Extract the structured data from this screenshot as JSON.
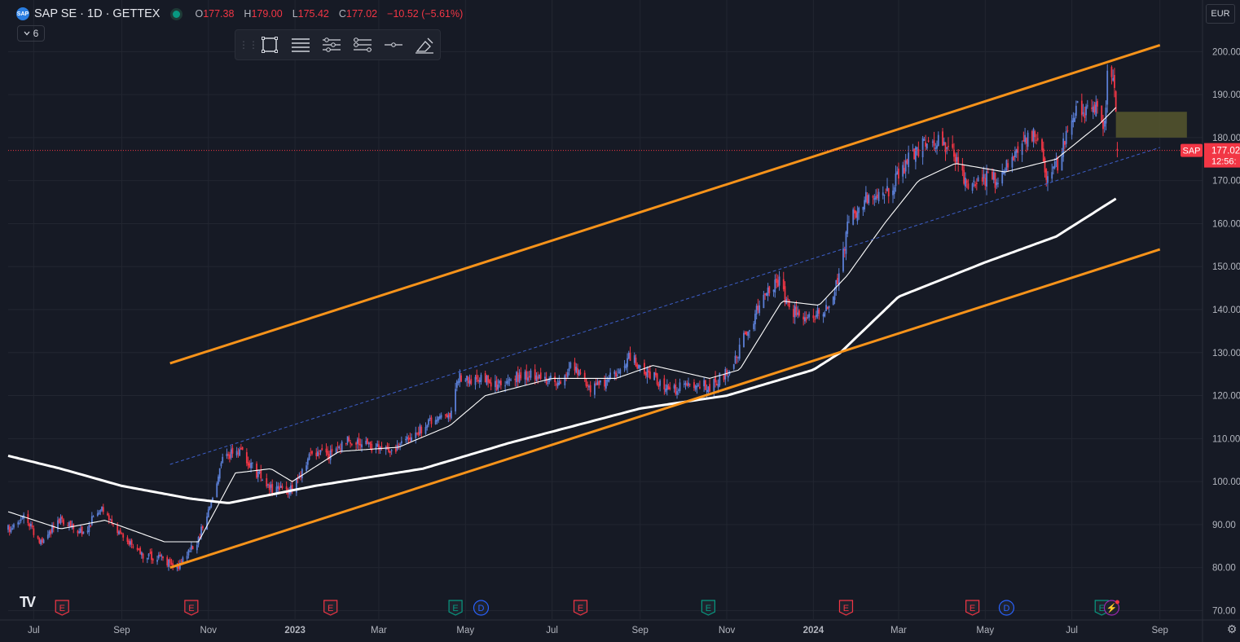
{
  "legend": {
    "logo": "SAP",
    "symbol": "SAP SE · 1D · GETTEX",
    "o_label": "O",
    "o": "177.38",
    "h_label": "H",
    "h": "179.00",
    "l_label": "L",
    "l": "175.42",
    "c_label": "C",
    "c": "177.02",
    "change": "−10.52 (−5.61%)"
  },
  "indicators_toggle": {
    "icon": "chevron-down-icon",
    "count": "6"
  },
  "drawing_toolbar": [
    "drag-handle-icon",
    "rectangle-icon",
    "align-lines-icon",
    "line-settings-icon",
    "lines-style-icon",
    "line-dot-icon",
    "eraser-icon"
  ],
  "currency": "EUR",
  "price_label": {
    "symbol": "SAP",
    "price": "177.02",
    "countdown": "12:56:",
    "color": "#f23645"
  },
  "events": [
    {
      "kind": "E",
      "date": "2022-07-21",
      "color": "#f23645"
    },
    {
      "kind": "E",
      "date": "2022-10-20",
      "color": "#f23645"
    },
    {
      "kind": "E",
      "date": "2023-01-26",
      "color": "#f23645"
    },
    {
      "kind": "E",
      "date": "2023-04-24",
      "color": "#089981"
    },
    {
      "kind": "D",
      "date": "2023-05-12",
      "color": "#2962ff"
    },
    {
      "kind": "E",
      "date": "2023-07-21",
      "color": "#f23645"
    },
    {
      "kind": "E",
      "date": "2023-10-19",
      "color": "#089981"
    },
    {
      "kind": "E",
      "date": "2024-01-24",
      "color": "#f23645"
    },
    {
      "kind": "E",
      "date": "2024-04-22",
      "color": "#f23645"
    },
    {
      "kind": "D",
      "date": "2024-05-16",
      "color": "#2962ff"
    },
    {
      "kind": "E",
      "date": "2024-07-22",
      "color": "#089981"
    },
    {
      "kind": "⚡",
      "date": "2024-07-29",
      "color": "#9c27b0"
    }
  ],
  "colors": {
    "up": "#5b7fd6",
    "down": "#f23645",
    "channel": "#f7931a",
    "ma": "#ffffff",
    "zone": "#5a5a2e",
    "background": "#161a25",
    "grid": "#222631"
  },
  "chart_data": {
    "type": "candlestick",
    "title": "SAP SE · 1D · GETTEX",
    "currency": "EUR",
    "xlim": [
      "2022-06-13",
      "2024-10-01"
    ],
    "ylim": [
      68,
      212
    ],
    "y_ticks": [
      70,
      80,
      90,
      100,
      110,
      120,
      130,
      140,
      150,
      160,
      170,
      180,
      190,
      200
    ],
    "y_tick_labels": [
      "70.00",
      "80.00",
      "90.00",
      "100.00",
      "110.00",
      "120.00",
      "130.00",
      "140.00",
      "150.00",
      "160.00",
      "170.00",
      "180.00",
      "190.00",
      "200.00"
    ],
    "x_ticks": [
      {
        "date": "2022-07-01",
        "label": "Jul"
      },
      {
        "date": "2022-09-01",
        "label": "Sep"
      },
      {
        "date": "2022-11-01",
        "label": "Nov"
      },
      {
        "date": "2023-01-01",
        "label": "2023"
      },
      {
        "date": "2023-03-01",
        "label": "Mar"
      },
      {
        "date": "2023-05-01",
        "label": "May"
      },
      {
        "date": "2023-07-01",
        "label": "Jul"
      },
      {
        "date": "2023-09-01",
        "label": "Sep"
      },
      {
        "date": "2023-11-01",
        "label": "Nov"
      },
      {
        "date": "2024-01-01",
        "label": "2024"
      },
      {
        "date": "2024-03-01",
        "label": "Mar"
      },
      {
        "date": "2024-05-01",
        "label": "May"
      },
      {
        "date": "2024-07-01",
        "label": "Jul"
      },
      {
        "date": "2024-09-01",
        "label": "Sep"
      }
    ],
    "price_anchors": [
      [
        "2022-06-13",
        89
      ],
      [
        "2022-06-24",
        92
      ],
      [
        "2022-07-05",
        86
      ],
      [
        "2022-07-20",
        91
      ],
      [
        "2022-08-05",
        88
      ],
      [
        "2022-08-17",
        94
      ],
      [
        "2022-08-31",
        88
      ],
      [
        "2022-09-15",
        83
      ],
      [
        "2022-09-29",
        82
      ],
      [
        "2022-10-10",
        80
      ],
      [
        "2022-10-24",
        86
      ],
      [
        "2022-11-04",
        96
      ],
      [
        "2022-11-11",
        106
      ],
      [
        "2022-11-24",
        107
      ],
      [
        "2022-12-05",
        102
      ],
      [
        "2022-12-16",
        98
      ],
      [
        "2022-12-30",
        98
      ],
      [
        "2023-01-13",
        107
      ],
      [
        "2023-01-27",
        106
      ],
      [
        "2023-02-08",
        110
      ],
      [
        "2023-02-24",
        108
      ],
      [
        "2023-03-10",
        107
      ],
      [
        "2023-03-24",
        110
      ],
      [
        "2023-04-06",
        114
      ],
      [
        "2023-04-20",
        116
      ],
      [
        "2023-04-26",
        124
      ],
      [
        "2023-05-12",
        124
      ],
      [
        "2023-05-26",
        122
      ],
      [
        "2023-06-09",
        125
      ],
      [
        "2023-06-23",
        124
      ],
      [
        "2023-07-07",
        123
      ],
      [
        "2023-07-14",
        128
      ],
      [
        "2023-07-28",
        122
      ],
      [
        "2023-08-11",
        124
      ],
      [
        "2023-08-25",
        129
      ],
      [
        "2023-09-08",
        125
      ],
      [
        "2023-09-22",
        121
      ],
      [
        "2023-10-06",
        123
      ],
      [
        "2023-10-20",
        122
      ],
      [
        "2023-11-03",
        126
      ],
      [
        "2023-11-17",
        136
      ],
      [
        "2023-11-30",
        145
      ],
      [
        "2023-12-08",
        147
      ],
      [
        "2023-12-15",
        140
      ],
      [
        "2023-12-29",
        138
      ],
      [
        "2024-01-10",
        140
      ],
      [
        "2024-01-19",
        148
      ],
      [
        "2024-01-26",
        161
      ],
      [
        "2024-02-09",
        167
      ],
      [
        "2024-02-23",
        168
      ],
      [
        "2024-03-08",
        175
      ],
      [
        "2024-03-22",
        180
      ],
      [
        "2024-04-05",
        178
      ],
      [
        "2024-04-19",
        168
      ],
      [
        "2024-04-26",
        171
      ],
      [
        "2024-05-10",
        170
      ],
      [
        "2024-05-24",
        178
      ],
      [
        "2024-06-07",
        181
      ],
      [
        "2024-06-14",
        170
      ],
      [
        "2024-06-21",
        174
      ],
      [
        "2024-07-05",
        188
      ],
      [
        "2024-07-12",
        186
      ],
      [
        "2024-07-19",
        187
      ],
      [
        "2024-07-24",
        183
      ],
      [
        "2024-07-26",
        195
      ],
      [
        "2024-07-30",
        193
      ],
      [
        "2024-08-01",
        187.5
      ],
      [
        "2024-08-02",
        177.02
      ]
    ],
    "last_candle": {
      "date": "2024-08-02",
      "open": 177.38,
      "high": 179.0,
      "low": 175.42,
      "close": 177.02
    },
    "ma_slow_anchors": [
      [
        "2022-06-13",
        106
      ],
      [
        "2022-07-20",
        103
      ],
      [
        "2022-09-01",
        99
      ],
      [
        "2022-10-20",
        96
      ],
      [
        "2022-11-15",
        95
      ],
      [
        "2023-01-15",
        99
      ],
      [
        "2023-04-01",
        103
      ],
      [
        "2023-06-01",
        109
      ],
      [
        "2023-09-01",
        117
      ],
      [
        "2023-11-01",
        120
      ],
      [
        "2024-01-01",
        126
      ],
      [
        "2024-01-20",
        130
      ],
      [
        "2024-03-01",
        143
      ],
      [
        "2024-05-01",
        151
      ],
      [
        "2024-06-20",
        157
      ],
      [
        "2024-08-02",
        166
      ]
    ],
    "ma_fast_anchors": [
      [
        "2022-06-13",
        93
      ],
      [
        "2022-07-20",
        89
      ],
      [
        "2022-08-20",
        91
      ],
      [
        "2022-10-01",
        86
      ],
      [
        "2022-10-25",
        86
      ],
      [
        "2022-11-20",
        102
      ],
      [
        "2022-12-15",
        103
      ],
      [
        "2022-12-30",
        100
      ],
      [
        "2023-02-01",
        107
      ],
      [
        "2023-03-15",
        108
      ],
      [
        "2023-04-20",
        113
      ],
      [
        "2023-05-15",
        120
      ],
      [
        "2023-07-01",
        124
      ],
      [
        "2023-08-15",
        124
      ],
      [
        "2023-09-10",
        127
      ],
      [
        "2023-10-20",
        124
      ],
      [
        "2023-11-10",
        126
      ],
      [
        "2023-12-10",
        142
      ],
      [
        "2024-01-05",
        141
      ],
      [
        "2024-01-25",
        148
      ],
      [
        "2024-02-20",
        160
      ],
      [
        "2024-03-15",
        170
      ],
      [
        "2024-04-10",
        174
      ],
      [
        "2024-05-15",
        172
      ],
      [
        "2024-06-20",
        175
      ],
      [
        "2024-07-20",
        183
      ],
      [
        "2024-08-01",
        187
      ]
    ],
    "channel_upper": [
      [
        "2022-10-05",
        127.5
      ],
      [
        "2024-09-01",
        201.5
      ]
    ],
    "channel_lower": [
      [
        "2022-10-05",
        80
      ],
      [
        "2024-09-01",
        154
      ]
    ],
    "channel_mid": [
      [
        "2022-10-05",
        104
      ],
      [
        "2024-09-01",
        177.7
      ]
    ],
    "zone": {
      "from": "2024-08-01",
      "to": "2024-09-20",
      "low": 180,
      "high": 186
    },
    "last_price_line": 177.02
  }
}
